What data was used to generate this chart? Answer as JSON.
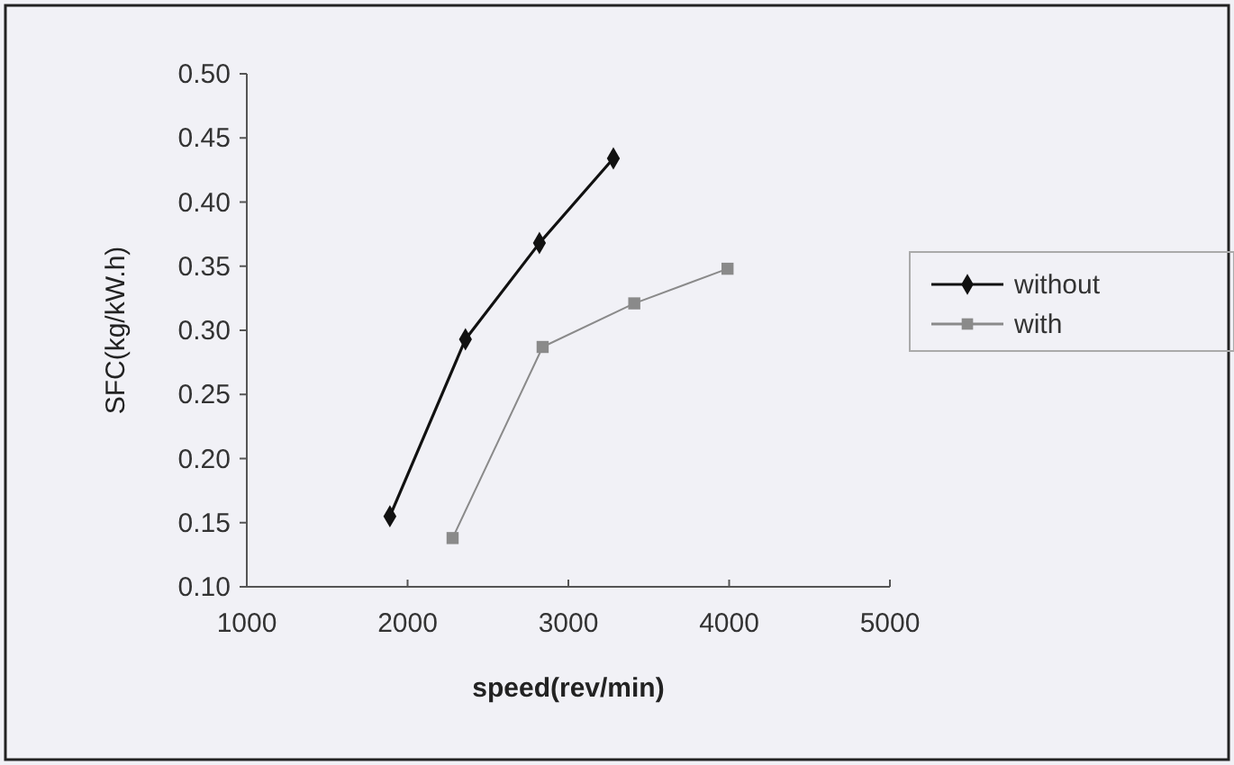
{
  "chart_data": {
    "type": "line",
    "xlabel": "speed(rev/min)",
    "ylabel": "SFC(kg/kW.h)",
    "xlim": [
      1000,
      5000
    ],
    "xticks": [
      1000,
      2000,
      3000,
      4000,
      5000
    ],
    "ylim": [
      0.1,
      0.5
    ],
    "yticks": [
      {
        "value": 0.1,
        "label": "0.10"
      },
      {
        "value": 0.15,
        "label": "0.15"
      },
      {
        "value": 0.2,
        "label": "0.20"
      },
      {
        "value": 0.25,
        "label": "0.25"
      },
      {
        "value": 0.3,
        "label": "0.30"
      },
      {
        "value": 0.35,
        "label": "0.35"
      },
      {
        "value": 0.4,
        "label": "0.40"
      },
      {
        "value": 0.45,
        "label": "0.45"
      },
      {
        "value": 0.5,
        "label": "0.50"
      }
    ],
    "grid": false,
    "legend": "right",
    "series": [
      {
        "name": "without",
        "color": "#111111",
        "marker": "diamond",
        "x": [
          1890,
          2360,
          2820,
          3280
        ],
        "values": [
          0.155,
          0.293,
          0.368,
          0.434
        ]
      },
      {
        "name": "with",
        "color": "#8a8a8a",
        "marker": "square",
        "x": [
          2280,
          2840,
          3410,
          3990
        ],
        "values": [
          0.138,
          0.287,
          0.321,
          0.348
        ]
      }
    ]
  }
}
